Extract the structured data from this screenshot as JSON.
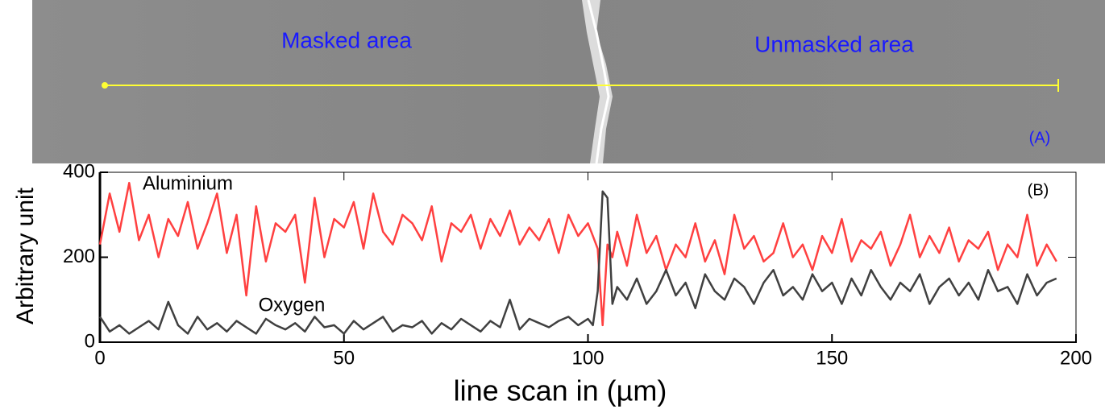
{
  "image": {
    "labels": [
      "Masked area",
      "Unmasked area",
      "(A)"
    ]
  },
  "chart_data": {
    "type": "line",
    "panel_label": "(B)",
    "x_label": "line scan in (µm)",
    "y_label": "Arbitrary unit",
    "xlim": [
      0,
      200
    ],
    "ylim": [
      0,
      400
    ],
    "xticks": [
      0,
      50,
      100,
      150,
      200
    ],
    "yticks": [
      0,
      200,
      400
    ],
    "x": [
      0,
      2,
      4,
      6,
      8,
      10,
      12,
      14,
      16,
      18,
      20,
      22,
      24,
      26,
      28,
      30,
      32,
      34,
      36,
      38,
      40,
      42,
      44,
      46,
      48,
      50,
      52,
      54,
      56,
      58,
      60,
      62,
      64,
      66,
      68,
      70,
      72,
      74,
      76,
      78,
      80,
      82,
      84,
      86,
      88,
      90,
      92,
      94,
      96,
      98,
      100,
      101,
      102,
      103,
      104,
      105,
      106,
      108,
      110,
      112,
      114,
      116,
      118,
      120,
      122,
      124,
      126,
      128,
      130,
      132,
      134,
      136,
      138,
      140,
      142,
      144,
      146,
      148,
      150,
      152,
      154,
      156,
      158,
      160,
      162,
      164,
      166,
      168,
      170,
      172,
      174,
      176,
      178,
      180,
      182,
      184,
      186,
      188,
      190,
      192,
      194,
      196
    ],
    "series": [
      {
        "name": "Aluminium",
        "color": "#ff4040",
        "values": [
          230,
          350,
          260,
          375,
          240,
          300,
          200,
          290,
          250,
          330,
          220,
          280,
          350,
          210,
          300,
          110,
          320,
          190,
          280,
          260,
          300,
          140,
          340,
          200,
          290,
          270,
          330,
          220,
          350,
          260,
          230,
          300,
          280,
          240,
          320,
          190,
          280,
          260,
          300,
          220,
          290,
          250,
          310,
          230,
          270,
          240,
          290,
          210,
          300,
          250,
          280,
          250,
          220,
          40,
          230,
          200,
          260,
          180,
          300,
          210,
          250,
          170,
          230,
          200,
          280,
          190,
          240,
          160,
          300,
          220,
          250,
          190,
          210,
          280,
          200,
          230,
          170,
          250,
          210,
          290,
          190,
          240,
          220,
          260,
          180,
          230,
          300,
          200,
          250,
          210,
          270,
          190,
          240,
          220,
          260,
          170,
          230,
          200,
          300,
          180,
          230,
          190
        ]
      },
      {
        "name": "Oxygen",
        "color": "#404040",
        "values": [
          60,
          25,
          40,
          20,
          35,
          50,
          30,
          95,
          40,
          20,
          60,
          30,
          45,
          25,
          50,
          35,
          20,
          55,
          40,
          30,
          45,
          25,
          60,
          35,
          40,
          20,
          50,
          30,
          45,
          60,
          25,
          40,
          35,
          50,
          20,
          45,
          30,
          55,
          40,
          25,
          50,
          35,
          100,
          30,
          55,
          45,
          35,
          50,
          60,
          40,
          55,
          40,
          120,
          355,
          340,
          90,
          130,
          100,
          150,
          90,
          120,
          170,
          110,
          140,
          80,
          160,
          120,
          100,
          150,
          130,
          90,
          140,
          170,
          110,
          130,
          100,
          160,
          120,
          140,
          90,
          150,
          110,
          170,
          130,
          100,
          140,
          120,
          160,
          90,
          130,
          150,
          110,
          140,
          100,
          170,
          120,
          130,
          90,
          160,
          110,
          140,
          150
        ]
      }
    ]
  }
}
